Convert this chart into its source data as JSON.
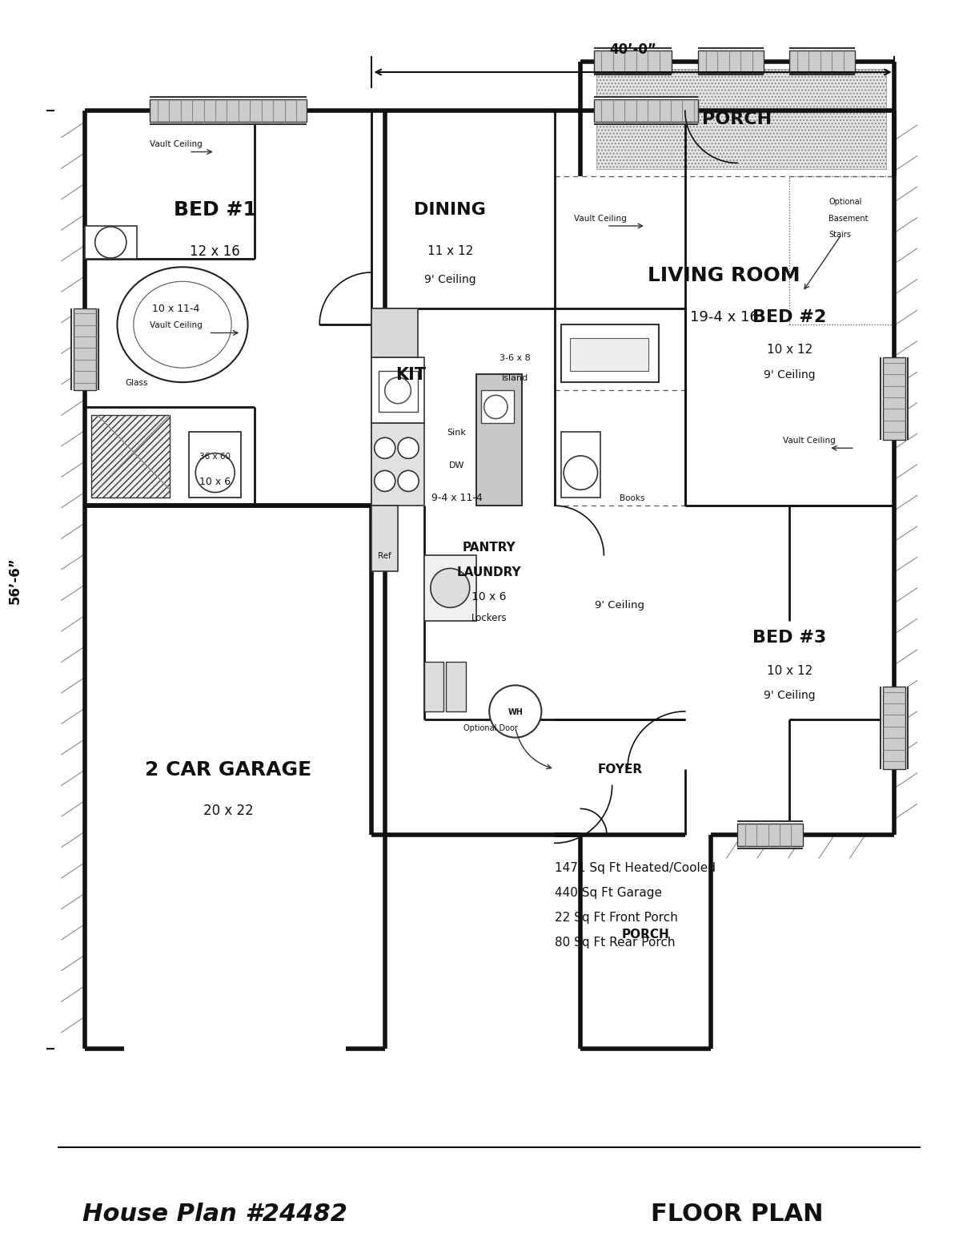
{
  "title_left": "House Plan #24482",
  "title_right": "FLOOR PLAN",
  "note_lines": [
    "1471 Sq Ft Heated/Cooled",
    "440 Sq Ft Garage",
    "22 Sq Ft Front Porch",
    "80 Sq Ft Rear Porch"
  ],
  "dim_top": "40’-0”",
  "dim_left": "56’-6”",
  "bg": "#FFFFFF",
  "wall_color": "#111111",
  "lw_outer": 4.0,
  "lw_inner": 2.0,
  "lw_thin": 1.2
}
